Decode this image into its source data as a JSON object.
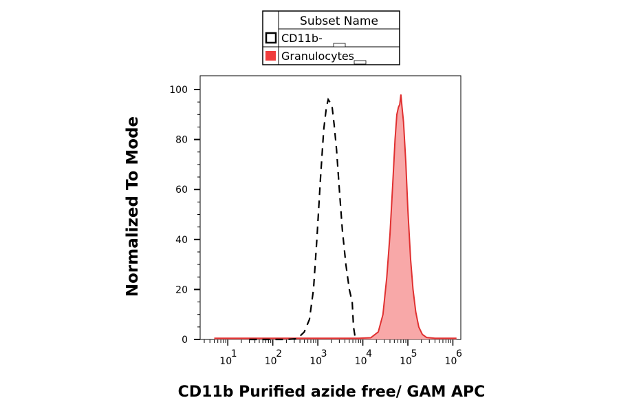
{
  "chart_data": {
    "type": "area",
    "xlabel": "CD11b Purified azide free/ GAM APC",
    "ylabel": "Normalized To Mode",
    "x_scale": "log",
    "xlim": [
      3,
      1500000
    ],
    "ylim": [
      0,
      100
    ],
    "x_ticks": [
      {
        "base": "10",
        "exp": "1",
        "value": 10
      },
      {
        "base": "10",
        "exp": "2",
        "value": 100
      },
      {
        "base": "10",
        "exp": "3",
        "value": 1000
      },
      {
        "base": "10",
        "exp": "4",
        "value": 10000
      },
      {
        "base": "10",
        "exp": "5",
        "value": 100000
      },
      {
        "base": "10",
        "exp": "6",
        "value": 1000000
      }
    ],
    "y_ticks": [
      "0",
      "20",
      "40",
      "60",
      "80",
      "100"
    ],
    "legend": {
      "header": "Subset Name",
      "placement": "top-center",
      "items": [
        {
          "label": "CD11b-",
          "style": "dashed-outline",
          "color": "#000000"
        },
        {
          "label": "Granulocytes",
          "style": "filled",
          "color": "#f03c3c"
        }
      ]
    },
    "series": [
      {
        "name": "CD11b-",
        "style": "dashed",
        "color": "#000000",
        "points": [
          [
            30,
            0
          ],
          [
            100,
            0
          ],
          [
            200,
            0
          ],
          [
            350,
            0.3
          ],
          [
            500,
            3
          ],
          [
            650,
            8
          ],
          [
            800,
            20
          ],
          [
            950,
            40
          ],
          [
            1150,
            65
          ],
          [
            1350,
            84
          ],
          [
            1550,
            93
          ],
          [
            1700,
            96
          ],
          [
            1850,
            95
          ],
          [
            2050,
            94
          ],
          [
            2300,
            86
          ],
          [
            2600,
            76
          ],
          [
            3000,
            60
          ],
          [
            3500,
            44
          ],
          [
            4200,
            30
          ],
          [
            5000,
            20
          ],
          [
            5800,
            15
          ],
          [
            6200,
            5
          ],
          [
            6800,
            0.5
          ],
          [
            7500,
            0
          ]
        ]
      },
      {
        "name": "Granulocytes",
        "style": "filled",
        "color": "#e03030",
        "fill": "#f8a8a8",
        "points": [
          [
            5,
            0.5
          ],
          [
            100,
            0.5
          ],
          [
            1000,
            0.5
          ],
          [
            8000,
            0.5
          ],
          [
            15000,
            0.7
          ],
          [
            22000,
            3
          ],
          [
            28000,
            10
          ],
          [
            34000,
            25
          ],
          [
            40000,
            42
          ],
          [
            46000,
            62
          ],
          [
            52000,
            80
          ],
          [
            57000,
            90
          ],
          [
            62000,
            93
          ],
          [
            66000,
            94
          ],
          [
            70000,
            98
          ],
          [
            74000,
            93
          ],
          [
            80000,
            87
          ],
          [
            90000,
            71
          ],
          [
            100000,
            52
          ],
          [
            115000,
            32
          ],
          [
            130000,
            20
          ],
          [
            150000,
            11
          ],
          [
            175000,
            5
          ],
          [
            210000,
            2
          ],
          [
            260000,
            0.8
          ],
          [
            400000,
            0.5
          ],
          [
            1200000,
            0.5
          ]
        ]
      }
    ]
  }
}
